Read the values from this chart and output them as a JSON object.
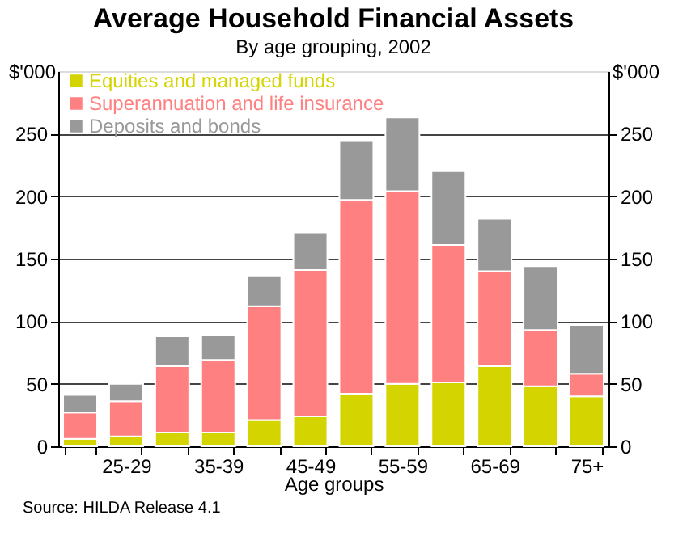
{
  "chart_data": {
    "type": "bar",
    "title": "Average Household Financial Assets",
    "subtitle": "By age grouping, 2002",
    "xlabel": "Age groups",
    "categories": [
      null,
      "25-29",
      null,
      "35-39",
      null,
      "45-49",
      null,
      "55-59",
      null,
      "65-69",
      null,
      "75+"
    ],
    "stacked": true,
    "series": [
      {
        "name": "Equities and managed funds",
        "color": "#d4d400",
        "values": [
          6,
          8,
          11,
          11,
          21,
          24,
          42,
          50,
          51,
          64,
          48,
          40
        ]
      },
      {
        "name": "Superannuation and life insurance",
        "color": "#ff8080",
        "values": [
          21,
          28,
          53,
          58,
          91,
          117,
          155,
          154,
          110,
          76,
          45,
          18
        ]
      },
      {
        "name": "Deposits and bonds",
        "color": "#999999",
        "values": [
          14,
          14,
          24,
          20,
          24,
          30,
          47,
          59,
          59,
          42,
          51,
          39
        ]
      }
    ],
    "ylabel": "$'000",
    "y2label": "$'000",
    "ylim": [
      0,
      300
    ],
    "yticks": [
      0,
      50,
      100,
      150,
      200,
      250
    ],
    "y2lim": [
      0,
      300
    ],
    "y2ticks": [
      0,
      50,
      100,
      150,
      200,
      250
    ],
    "grid": "y",
    "legend": "top left",
    "annotations": [
      "Source: HILDA Release 4.1"
    ]
  }
}
